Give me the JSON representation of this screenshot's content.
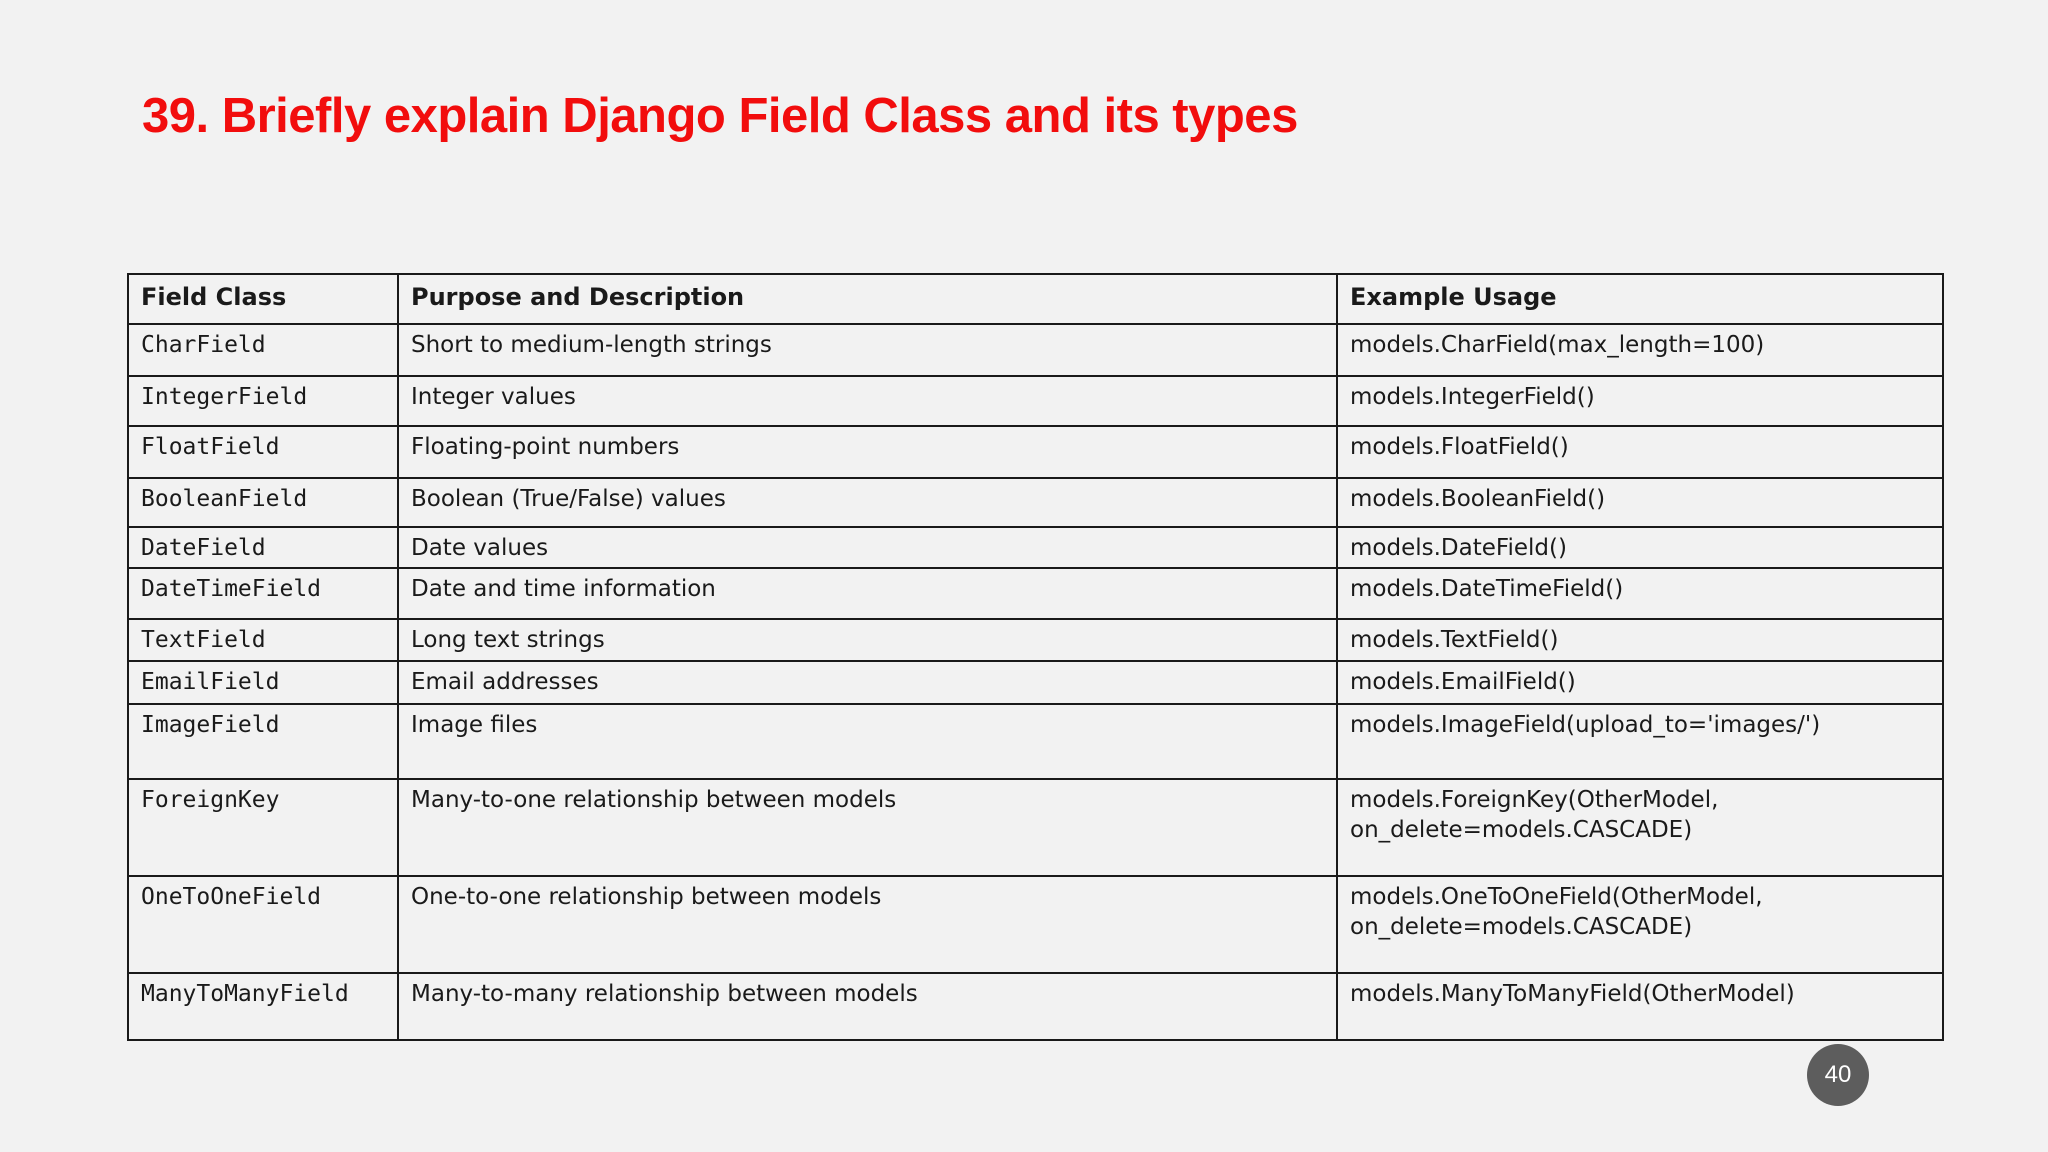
{
  "slide": {
    "title": "39. Briefly explain Django Field Class and its types",
    "page_number": "40",
    "colors": {
      "background": "#f2f2f2",
      "title_red": "#f20d0d",
      "table_border": "#1a1a1a",
      "badge_gray": "#5d5d5d",
      "badge_text": "#ffffff"
    }
  },
  "table": {
    "headers": [
      "Field Class",
      "Purpose and Description",
      "Example Usage"
    ],
    "rows": [
      {
        "field": "CharField",
        "purpose": "Short to medium-length strings",
        "example": "models.CharField(max_length=100)"
      },
      {
        "field": "IntegerField",
        "purpose": "Integer values",
        "example": "models.IntegerField()"
      },
      {
        "field": "FloatField",
        "purpose": "Floating-point numbers",
        "example": "models.FloatField()"
      },
      {
        "field": "BooleanField",
        "purpose": "Boolean (True/False) values",
        "example": "models.BooleanField()"
      },
      {
        "field": "DateField",
        "purpose": "Date values",
        "example": "models.DateField()"
      },
      {
        "field": "DateTimeField",
        "purpose": "Date and time information",
        "example": "models.DateTimeField()"
      },
      {
        "field": "TextField",
        "purpose": "Long text strings",
        "example": "models.TextField()"
      },
      {
        "field": "EmailField",
        "purpose": "Email addresses",
        "example": "models.EmailField()"
      },
      {
        "field": "ImageField",
        "purpose": "Image files",
        "example": "models.ImageField(upload_to='images/')"
      },
      {
        "field": "ForeignKey",
        "purpose": "Many-to-one relationship between models",
        "example": "models.ForeignKey(OtherModel,\non_delete=models.CASCADE)"
      },
      {
        "field": "OneToOneField",
        "purpose": "One-to-one relationship between models",
        "example": "models.OneToOneField(OtherModel,\non_delete=models.CASCADE)"
      },
      {
        "field": "ManyToManyField",
        "purpose": "Many-to-many relationship between models",
        "example": "models.ManyToManyField(OtherModel)"
      }
    ]
  }
}
